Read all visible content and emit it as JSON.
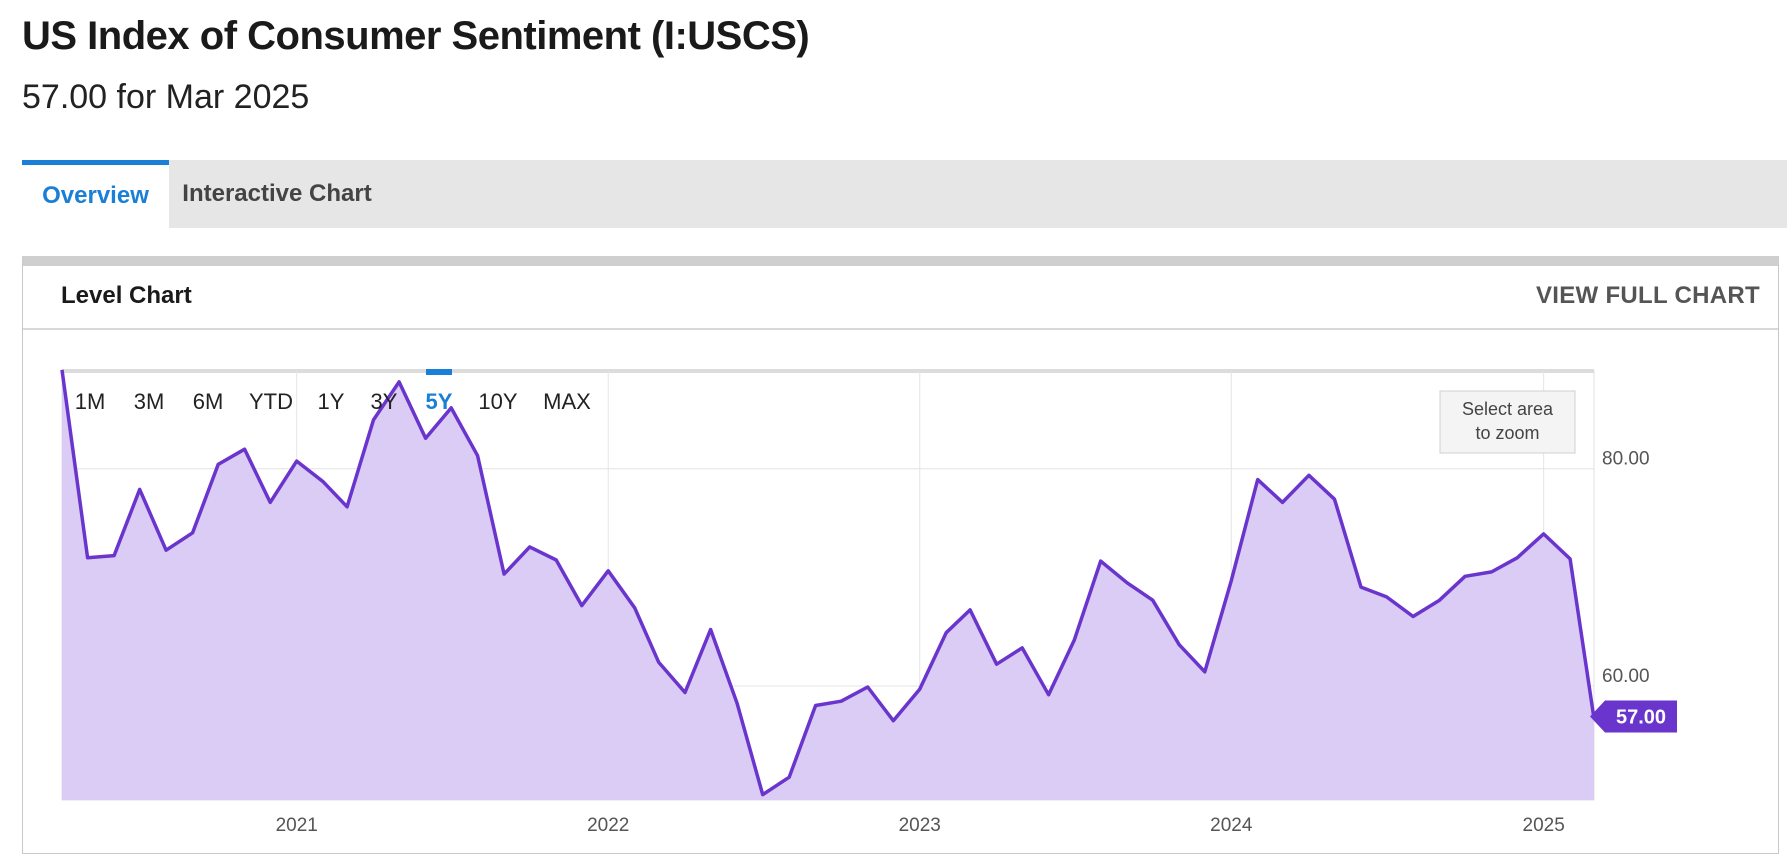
{
  "page": {
    "title": "US Index of Consumer Sentiment (I:USCS)",
    "subtitle": "57.00 for Mar 2025"
  },
  "tabs": [
    {
      "label": "Overview",
      "active": true
    },
    {
      "label": "Interactive Chart",
      "active": false
    }
  ],
  "panel": {
    "title": "Level Chart",
    "link": "VIEW FULL CHART"
  },
  "chart_controls": {
    "ranges": [
      "1M",
      "3M",
      "6M",
      "YTD",
      "1Y",
      "3Y",
      "5Y",
      "10Y",
      "MAX"
    ],
    "selected": "5Y",
    "zoom_hint": [
      "Select area",
      "to zoom"
    ]
  },
  "colors": {
    "line": "#6a35cc",
    "fill": "#d8c9f3",
    "accent": "#1a7fd6",
    "badge": "#6a35cc"
  },
  "chart_data": {
    "type": "area",
    "title": "",
    "xlabel": "",
    "ylabel": "",
    "ylim": [
      49.5,
      89
    ],
    "y_ticks": [
      60,
      80
    ],
    "y_tick_labels": [
      "60.00",
      "80.00"
    ],
    "x_ticks": [
      2021,
      2022,
      2023,
      2024,
      2025
    ],
    "x_tick_labels": [
      "2021",
      "2022",
      "2023",
      "2024",
      "2025"
    ],
    "grid": true,
    "last_value_label": "57.00",
    "series": [
      {
        "x": [
          "2020-04",
          "2020-05",
          "2020-06",
          "2020-07",
          "2020-08",
          "2020-09",
          "2020-10",
          "2020-11",
          "2020-12",
          "2021-01",
          "2021-02",
          "2021-03",
          "2021-04",
          "2021-05",
          "2021-06",
          "2021-07",
          "2021-08",
          "2021-09",
          "2021-10",
          "2021-11",
          "2021-12",
          "2022-01",
          "2022-02",
          "2022-03",
          "2022-04",
          "2022-05",
          "2022-06",
          "2022-07",
          "2022-08",
          "2022-09",
          "2022-10",
          "2022-11",
          "2022-12",
          "2023-01",
          "2023-02",
          "2023-03",
          "2023-04",
          "2023-05",
          "2023-06",
          "2023-07",
          "2023-08",
          "2023-09",
          "2023-10",
          "2023-11",
          "2023-12",
          "2024-01",
          "2024-02",
          "2024-03",
          "2024-04",
          "2024-05",
          "2024-06",
          "2024-07",
          "2024-08",
          "2024-09",
          "2024-10",
          "2024-11",
          "2024-12",
          "2025-01",
          "2025-02",
          "2025-03"
        ],
        "values": [
          89.1,
          71.8,
          72.0,
          78.1,
          72.5,
          74.1,
          80.4,
          81.8,
          76.9,
          80.7,
          78.8,
          76.5,
          84.5,
          88.0,
          82.8,
          85.6,
          81.2,
          70.3,
          72.8,
          71.6,
          67.4,
          70.6,
          67.2,
          62.2,
          59.4,
          65.2,
          58.4,
          50.0,
          51.6,
          58.2,
          58.6,
          59.9,
          56.8,
          59.7,
          64.9,
          67.0,
          62.0,
          63.5,
          59.2,
          64.2,
          71.5,
          69.5,
          67.9,
          63.8,
          61.3,
          69.7,
          79.0,
          76.9,
          79.4,
          77.2,
          69.1,
          68.2,
          66.4,
          67.9,
          70.1,
          70.5,
          71.8,
          74.0,
          71.7,
          57.0
        ]
      }
    ]
  }
}
